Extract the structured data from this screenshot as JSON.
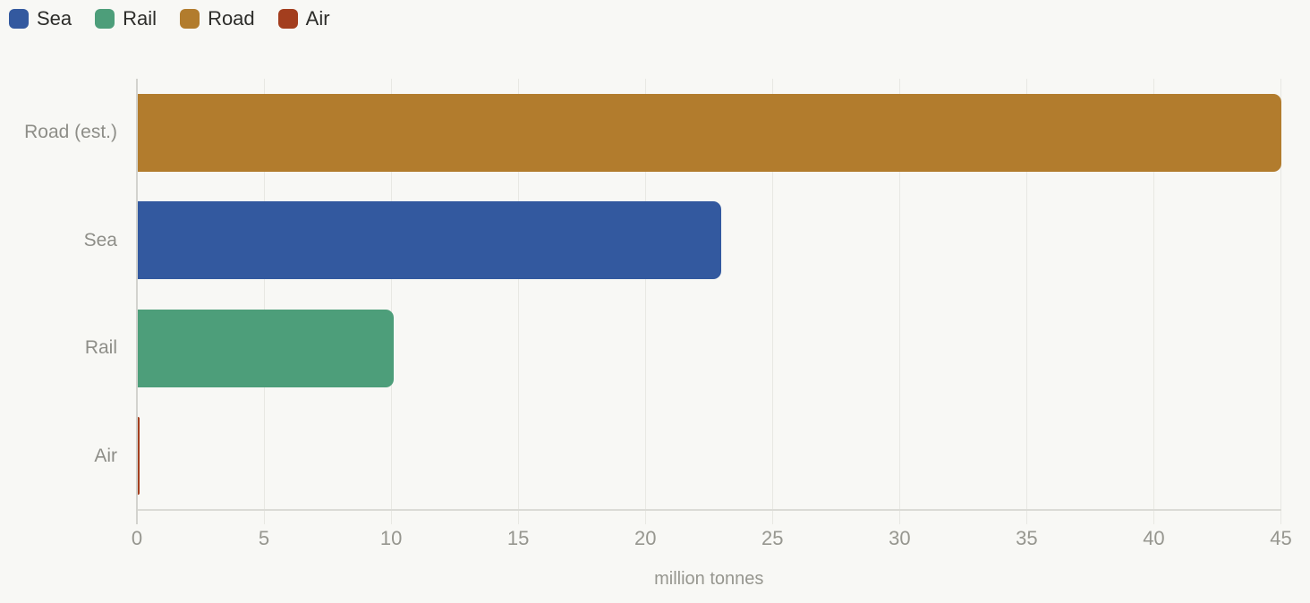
{
  "legend": {
    "items": [
      {
        "label": "Sea",
        "color": "#33599F"
      },
      {
        "label": "Rail",
        "color": "#4D9E7A"
      },
      {
        "label": "Road",
        "color": "#B27C2D"
      },
      {
        "label": "Air",
        "color": "#A33E1E"
      }
    ]
  },
  "chart_data": {
    "type": "bar",
    "orientation": "horizontal",
    "title": "",
    "categories": [
      "Road (est.)",
      "Sea",
      "Rail",
      "Air"
    ],
    "values": [
      45,
      23,
      10.1,
      0.1
    ],
    "bar_colors": [
      "#B27C2D",
      "#33599F",
      "#4D9E7A",
      "#A33E1E"
    ],
    "xlabel": "million tonnes",
    "ylabel": "",
    "xlim": [
      0,
      45
    ],
    "xticks": [
      0,
      5,
      10,
      15,
      20,
      25,
      30,
      35,
      40,
      45
    ],
    "grid": "vertical",
    "legend_position": "top-left",
    "legend_entries": [
      "Sea",
      "Rail",
      "Road",
      "Air"
    ]
  },
  "colors": {
    "background": "#F8F8F5",
    "gridline": "#E8E8E3",
    "axis_line": "#DBDBD6",
    "y_axis_line": "#D3D3CE",
    "tick_label": "#96968F",
    "category_label": "#8E8E88",
    "legend_text": "#2D2D2A"
  }
}
